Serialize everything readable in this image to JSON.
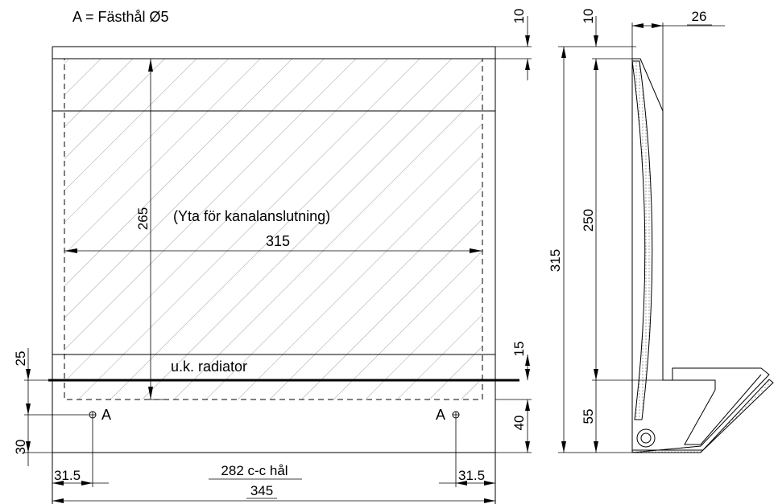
{
  "legend": {
    "text": "A = Fästhål Ø5"
  },
  "front_view": {
    "area_label": "(Yta för kanalanslutning)",
    "radiator_label": "u.k. radiator",
    "hole_left_label": "A",
    "hole_right_label": "A",
    "dimensions": {
      "top_offset": "10",
      "area_height": "265",
      "area_width": "315",
      "radiator_offset": "15",
      "left_height": "25",
      "hole_height": "40",
      "bottom_offset": "30",
      "edge_left": "31.5",
      "hole_spacing": "282 c-c hål",
      "edge_right": "31.5",
      "total_width": "345"
    }
  },
  "side_view": {
    "dimensions": {
      "top_offset": "10",
      "depth": "26",
      "total_height": "315",
      "upper_height": "250",
      "lower_height": "55"
    }
  }
}
